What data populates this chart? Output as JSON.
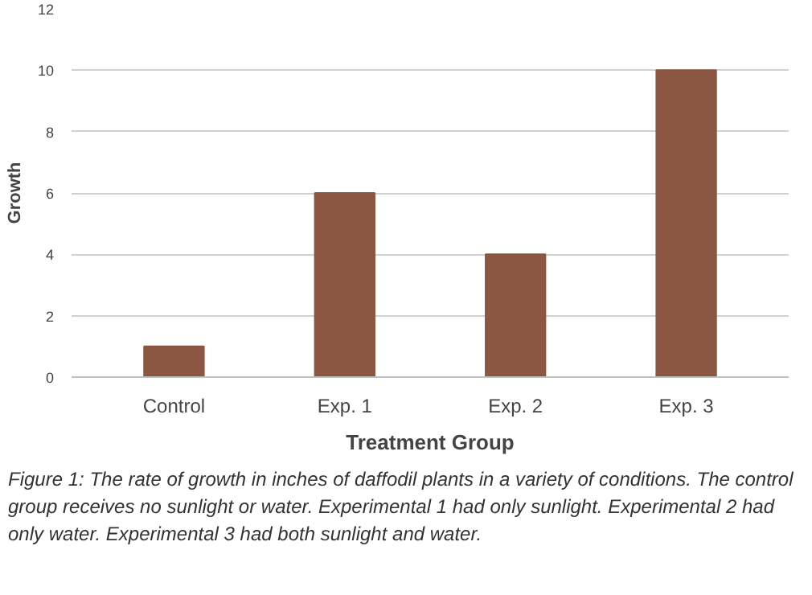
{
  "chart_data": {
    "type": "bar",
    "xlabel": "Treatment Group",
    "ylabel": "Growth",
    "categories": [
      "Control",
      "Exp. 1",
      "Exp. 2",
      "Exp. 3"
    ],
    "values": [
      1,
      6,
      4,
      10
    ],
    "color": "#8b5742",
    "ylim": [
      0,
      12
    ],
    "yticks": [
      0,
      2,
      4,
      6,
      8,
      10,
      12
    ],
    "grid": "y",
    "annotations": [
      "Figure 1: The rate of growth in inches of daffodil plants in a variety of conditions. The control group receives no sunlight or water. Experimental 1 had only sunlight. Experimental 2 had only water. Experimental 3 had both sunlight and water."
    ]
  }
}
